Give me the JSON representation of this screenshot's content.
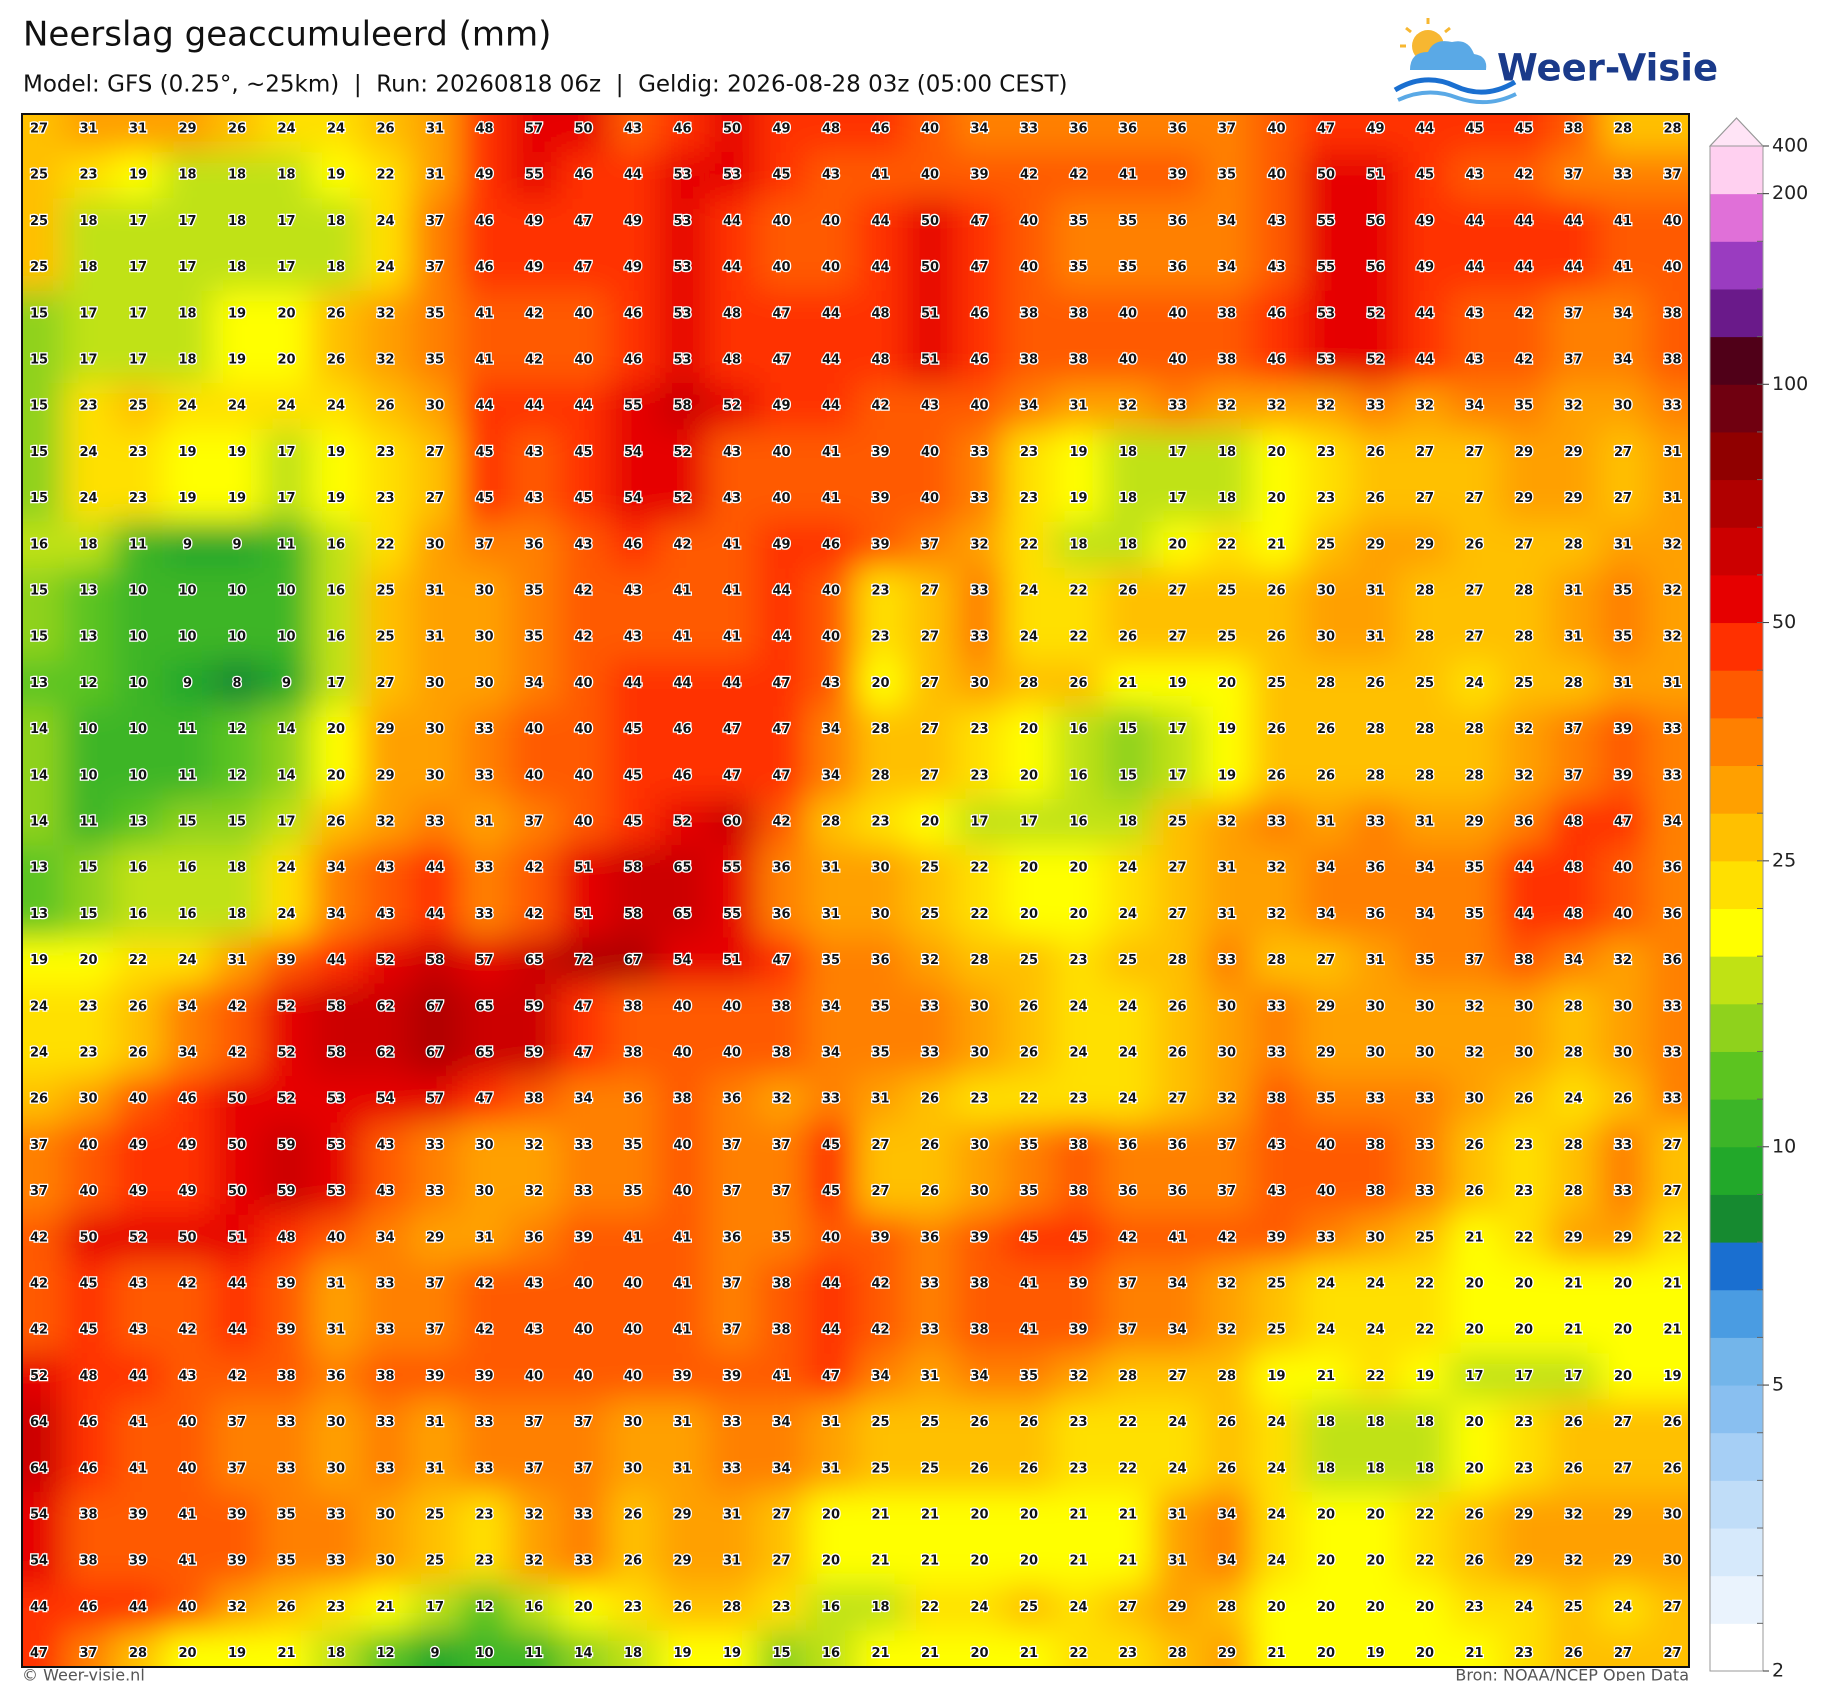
{
  "header": {
    "title": "Neerslag geaccumuleerd (mm)",
    "subtitle": "Model: GFS (0.25°, ~25km)  |  Run: 20260818 06z  |  Geldig: 2026-08-28 03z (05:00 CEST)"
  },
  "logo": "Weer-Visie",
  "grid": [
    [
      27,
      31,
      31,
      29,
      26,
      24,
      24,
      26,
      31,
      48,
      57,
      50,
      43,
      46,
      50,
      49,
      48,
      46,
      40,
      34,
      33,
      36,
      36,
      36,
      37,
      40,
      47,
      49,
      44,
      45,
      45,
      38,
      28,
      28
    ],
    [
      25,
      23,
      19,
      18,
      18,
      18,
      19,
      22,
      31,
      49,
      55,
      46,
      44,
      53,
      53,
      45,
      43,
      41,
      40,
      39,
      42,
      42,
      41,
      39,
      35,
      40,
      50,
      51,
      45,
      43,
      42,
      37,
      33,
      37
    ],
    [
      25,
      18,
      17,
      17,
      18,
      17,
      18,
      24,
      37,
      46,
      49,
      47,
      49,
      53,
      44,
      40,
      40,
      44,
      50,
      47,
      40,
      35,
      35,
      36,
      34,
      43,
      55,
      56,
      49,
      44,
      44,
      44,
      41,
      40
    ],
    [
      25,
      18,
      17,
      17,
      18,
      17,
      18,
      24,
      37,
      46,
      49,
      47,
      49,
      53,
      44,
      40,
      40,
      44,
      50,
      47,
      40,
      35,
      35,
      36,
      34,
      43,
      55,
      56,
      49,
      44,
      44,
      44,
      41,
      40
    ],
    [
      15,
      17,
      17,
      18,
      19,
      20,
      26,
      32,
      35,
      41,
      42,
      40,
      46,
      53,
      48,
      47,
      44,
      48,
      51,
      46,
      38,
      38,
      40,
      40,
      38,
      46,
      53,
      52,
      44,
      43,
      42,
      37,
      34,
      38
    ],
    [
      15,
      17,
      17,
      18,
      19,
      20,
      26,
      32,
      35,
      41,
      42,
      40,
      46,
      53,
      48,
      47,
      44,
      48,
      51,
      46,
      38,
      38,
      40,
      40,
      38,
      46,
      53,
      52,
      44,
      43,
      42,
      37,
      34,
      38
    ],
    [
      15,
      23,
      25,
      24,
      24,
      24,
      24,
      26,
      30,
      44,
      44,
      44,
      55,
      58,
      52,
      49,
      44,
      42,
      43,
      40,
      34,
      31,
      32,
      33,
      32,
      32,
      32,
      33,
      32,
      34,
      35,
      32,
      30,
      33
    ],
    [
      15,
      24,
      23,
      19,
      19,
      17,
      19,
      23,
      27,
      45,
      43,
      45,
      54,
      52,
      43,
      40,
      41,
      39,
      40,
      33,
      23,
      19,
      18,
      17,
      18,
      20,
      23,
      26,
      27,
      27,
      29,
      29,
      27,
      31
    ],
    [
      15,
      24,
      23,
      19,
      19,
      17,
      19,
      23,
      27,
      45,
      43,
      45,
      54,
      52,
      43,
      40,
      41,
      39,
      40,
      33,
      23,
      19,
      18,
      17,
      18,
      20,
      23,
      26,
      27,
      27,
      29,
      29,
      27,
      31
    ],
    [
      16,
      18,
      11,
      9,
      9,
      11,
      16,
      22,
      30,
      37,
      36,
      43,
      46,
      42,
      41,
      49,
      46,
      39,
      37,
      32,
      22,
      18,
      18,
      20,
      22,
      21,
      25,
      29,
      29,
      26,
      27,
      28,
      31,
      32
    ],
    [
      15,
      13,
      10,
      10,
      10,
      10,
      16,
      25,
      31,
      30,
      35,
      42,
      43,
      41,
      41,
      44,
      40,
      23,
      27,
      33,
      24,
      22,
      26,
      27,
      25,
      26,
      30,
      31,
      28,
      27,
      28,
      31,
      35,
      32
    ],
    [
      15,
      13,
      10,
      10,
      10,
      10,
      16,
      25,
      31,
      30,
      35,
      42,
      43,
      41,
      41,
      44,
      40,
      23,
      27,
      33,
      24,
      22,
      26,
      27,
      25,
      26,
      30,
      31,
      28,
      27,
      28,
      31,
      35,
      32
    ],
    [
      13,
      12,
      10,
      9,
      8,
      9,
      17,
      27,
      30,
      30,
      34,
      40,
      44,
      44,
      44,
      47,
      43,
      20,
      27,
      30,
      28,
      26,
      21,
      19,
      20,
      25,
      28,
      26,
      25,
      24,
      25,
      28,
      31,
      31
    ],
    [
      14,
      10,
      10,
      11,
      12,
      14,
      20,
      29,
      30,
      33,
      40,
      40,
      45,
      46,
      47,
      47,
      34,
      28,
      27,
      23,
      20,
      16,
      15,
      17,
      19,
      26,
      26,
      28,
      28,
      28,
      32,
      37,
      39,
      33
    ],
    [
      14,
      10,
      10,
      11,
      12,
      14,
      20,
      29,
      30,
      33,
      40,
      40,
      45,
      46,
      47,
      47,
      34,
      28,
      27,
      23,
      20,
      16,
      15,
      17,
      19,
      26,
      26,
      28,
      28,
      28,
      32,
      37,
      39,
      33
    ],
    [
      14,
      11,
      13,
      15,
      15,
      17,
      26,
      32,
      33,
      31,
      37,
      40,
      45,
      52,
      60,
      42,
      28,
      23,
      20,
      17,
      17,
      16,
      18,
      25,
      32,
      33,
      31,
      33,
      31,
      29,
      36,
      48,
      47,
      34
    ],
    [
      13,
      15,
      16,
      16,
      18,
      24,
      34,
      43,
      44,
      33,
      42,
      51,
      58,
      65,
      55,
      36,
      31,
      30,
      25,
      22,
      20,
      20,
      24,
      27,
      31,
      32,
      34,
      36,
      34,
      35,
      44,
      48,
      40,
      36
    ],
    [
      13,
      15,
      16,
      16,
      18,
      24,
      34,
      43,
      44,
      33,
      42,
      51,
      58,
      65,
      55,
      36,
      31,
      30,
      25,
      22,
      20,
      20,
      24,
      27,
      31,
      32,
      34,
      36,
      34,
      35,
      44,
      48,
      40,
      36
    ],
    [
      19,
      20,
      22,
      24,
      31,
      39,
      44,
      52,
      58,
      57,
      65,
      72,
      67,
      54,
      51,
      47,
      35,
      36,
      32,
      28,
      25,
      23,
      25,
      28,
      33,
      28,
      27,
      31,
      35,
      37,
      38,
      34,
      32,
      36
    ],
    [
      24,
      23,
      26,
      34,
      42,
      52,
      58,
      62,
      67,
      65,
      59,
      47,
      38,
      40,
      40,
      38,
      34,
      35,
      33,
      30,
      26,
      24,
      24,
      26,
      30,
      33,
      29,
      30,
      30,
      32,
      30,
      28,
      30,
      33
    ],
    [
      24,
      23,
      26,
      34,
      42,
      52,
      58,
      62,
      67,
      65,
      59,
      47,
      38,
      40,
      40,
      38,
      34,
      35,
      33,
      30,
      26,
      24,
      24,
      26,
      30,
      33,
      29,
      30,
      30,
      32,
      30,
      28,
      30,
      33
    ],
    [
      26,
      30,
      40,
      46,
      50,
      52,
      53,
      54,
      57,
      47,
      38,
      34,
      36,
      38,
      36,
      32,
      33,
      31,
      26,
      23,
      22,
      23,
      24,
      27,
      32,
      38,
      35,
      33,
      33,
      30,
      26,
      24,
      26,
      33
    ],
    [
      37,
      40,
      49,
      49,
      50,
      59,
      53,
      43,
      33,
      30,
      32,
      33,
      35,
      40,
      37,
      37,
      45,
      27,
      26,
      30,
      35,
      38,
      36,
      36,
      37,
      43,
      40,
      38,
      33,
      26,
      23,
      28,
      33,
      27
    ],
    [
      37,
      40,
      49,
      49,
      50,
      59,
      53,
      43,
      33,
      30,
      32,
      33,
      35,
      40,
      37,
      37,
      45,
      27,
      26,
      30,
      35,
      38,
      36,
      36,
      37,
      43,
      40,
      38,
      33,
      26,
      23,
      28,
      33,
      27
    ],
    [
      42,
      50,
      52,
      50,
      51,
      48,
      40,
      34,
      29,
      31,
      36,
      39,
      41,
      41,
      36,
      35,
      40,
      39,
      36,
      39,
      45,
      45,
      42,
      41,
      42,
      39,
      33,
      30,
      25,
      21,
      22,
      29,
      29,
      22
    ],
    [
      42,
      45,
      43,
      42,
      44,
      39,
      31,
      33,
      37,
      42,
      43,
      40,
      40,
      41,
      37,
      38,
      44,
      42,
      33,
      38,
      41,
      39,
      37,
      34,
      32,
      25,
      24,
      24,
      22,
      20,
      20,
      21,
      20,
      21
    ],
    [
      42,
      45,
      43,
      42,
      44,
      39,
      31,
      33,
      37,
      42,
      43,
      40,
      40,
      41,
      37,
      38,
      44,
      42,
      33,
      38,
      41,
      39,
      37,
      34,
      32,
      25,
      24,
      24,
      22,
      20,
      20,
      21,
      20,
      21
    ],
    [
      52,
      48,
      44,
      43,
      42,
      38,
      36,
      38,
      39,
      39,
      40,
      40,
      40,
      39,
      39,
      41,
      47,
      34,
      31,
      34,
      35,
      32,
      28,
      27,
      28,
      19,
      21,
      22,
      19,
      17,
      17,
      17,
      20,
      19
    ],
    [
      64,
      46,
      41,
      40,
      37,
      33,
      30,
      33,
      31,
      33,
      37,
      37,
      30,
      31,
      33,
      34,
      31,
      25,
      25,
      26,
      26,
      23,
      22,
      24,
      26,
      24,
      18,
      18,
      18,
      20,
      23,
      26,
      27,
      26
    ],
    [
      64,
      46,
      41,
      40,
      37,
      33,
      30,
      33,
      31,
      33,
      37,
      37,
      30,
      31,
      33,
      34,
      31,
      25,
      25,
      26,
      26,
      23,
      22,
      24,
      26,
      24,
      18,
      18,
      18,
      20,
      23,
      26,
      27,
      26
    ],
    [
      54,
      38,
      39,
      41,
      39,
      35,
      33,
      30,
      25,
      23,
      32,
      33,
      26,
      29,
      31,
      27,
      20,
      21,
      21,
      20,
      20,
      21,
      21,
      31,
      34,
      24,
      20,
      20,
      22,
      26,
      29,
      32,
      29,
      30
    ],
    [
      54,
      38,
      39,
      41,
      39,
      35,
      33,
      30,
      25,
      23,
      32,
      33,
      26,
      29,
      31,
      27,
      20,
      21,
      21,
      20,
      20,
      21,
      21,
      31,
      34,
      24,
      20,
      20,
      22,
      26,
      29,
      32,
      29,
      30
    ],
    [
      44,
      46,
      44,
      40,
      32,
      26,
      23,
      21,
      17,
      12,
      16,
      20,
      23,
      26,
      28,
      23,
      16,
      18,
      22,
      24,
      25,
      24,
      27,
      29,
      28,
      20,
      20,
      20,
      20,
      23,
      24,
      25,
      24,
      27
    ],
    [
      47,
      37,
      28,
      20,
      19,
      21,
      18,
      12,
      9,
      10,
      11,
      14,
      18,
      19,
      19,
      15,
      16,
      21,
      21,
      20,
      21,
      22,
      23,
      28,
      29,
      21,
      20,
      19,
      20,
      21,
      23,
      26,
      27,
      27
    ]
  ],
  "colorbar": {
    "ticks": [
      400,
      200,
      100,
      50,
      25,
      10,
      5,
      2
    ],
    "colors": [
      "#ffffff",
      "#eaf3fd",
      "#d6e9fb",
      "#c0ddf8",
      "#a6cff5",
      "#89bff0",
      "#73b5ea",
      "#4a9ce2",
      "#1a6fd0",
      "#168a30",
      "#22a82a",
      "#3cb528",
      "#5cc420",
      "#8fd21c",
      "#c0e214",
      "#ffff00",
      "#ffe000",
      "#ffc000",
      "#ffa000",
      "#ff8000",
      "#ff5a00",
      "#ff3000",
      "#e60000",
      "#cc0000",
      "#b00000",
      "#900000",
      "#700010",
      "#500018",
      "#6a1a8a",
      "#9a3cc0",
      "#e070d8",
      "#ffd0f0"
    ],
    "extend_color": "#ffe4f6"
  },
  "footer": {
    "left": "© Weer-visie.nl",
    "right": "Bron: NOAA/NCEP Open Data"
  }
}
